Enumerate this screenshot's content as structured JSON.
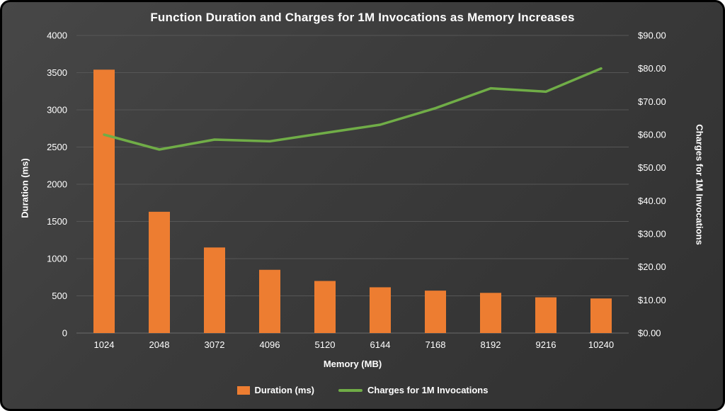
{
  "chart_data": {
    "type": "combo",
    "title": "Function Duration and Charges for 1M Invocations as Memory Increases",
    "categories": [
      "1024",
      "2048",
      "3072",
      "4096",
      "5120",
      "6144",
      "7168",
      "8192",
      "9216",
      "10240"
    ],
    "series": [
      {
        "name": "Duration (ms)",
        "type": "bar",
        "axis": "left",
        "color": "#ED7D31",
        "values": [
          3540,
          1630,
          1150,
          850,
          700,
          615,
          570,
          540,
          480,
          465
        ]
      },
      {
        "name": "Charges for 1M Invocations",
        "type": "line",
        "axis": "right",
        "color": "#70AD47",
        "values": [
          60.0,
          55.5,
          58.5,
          58.0,
          60.5,
          63.0,
          68.0,
          74.0,
          73.0,
          80.0
        ]
      }
    ],
    "xlabel": "Memory (MB)",
    "ylabel_left": "Duration (ms)",
    "ylabel_right": "Charges for 1M Invocations",
    "ylim_left": [
      0,
      4000
    ],
    "ylim_right": [
      0,
      90
    ],
    "left_ticks": [
      "0",
      "500",
      "1000",
      "1500",
      "2000",
      "2500",
      "3000",
      "3500",
      "4000"
    ],
    "right_ticks": [
      "$0.00",
      "$10.00",
      "$20.00",
      "$30.00",
      "$40.00",
      "$50.00",
      "$60.00",
      "$70.00",
      "$80.00",
      "$90.00"
    ],
    "grid": true,
    "legend_position": "bottom"
  },
  "colors": {
    "background": "#3b3b3b",
    "grid": "#565656",
    "axis_line": "#6b6b6b",
    "text": "#ffffff",
    "bar": "#ED7D31",
    "line": "#70AD47"
  }
}
